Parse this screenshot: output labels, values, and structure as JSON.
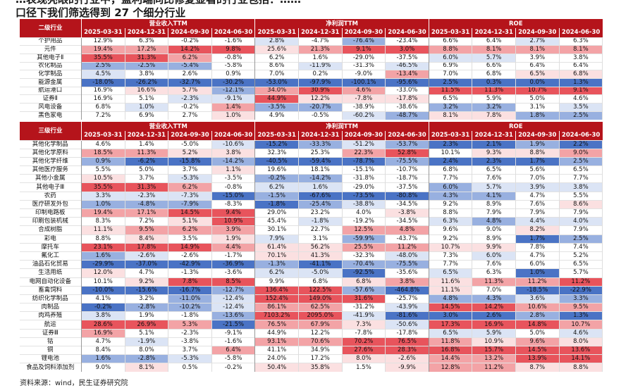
{
  "title": {
    "line1": "…表现亮眼的行业中，盈利端同比修复显著的行业包括：……",
    "line2": "口径下我们筛选得到 27 个细分行业"
  },
  "colors": {
    "header": "#b5141b",
    "red_strong": "#e8545c",
    "red_mid": "#f3a3a6",
    "red_light": "#fbe0e1",
    "blue_strong": "#4a73c5",
    "blue_mid": "#98b0e0",
    "blue_light": "#dbe4f5"
  },
  "periods": [
    "2025-03-31",
    "2024-12-31",
    "2024-09-30",
    "2024-06-30"
  ],
  "metrics": [
    "营业收入TTM",
    "净利润TTM",
    "ROE"
  ],
  "table1": {
    "industry_label": "二级行业",
    "rows": [
      {
        "name": "个护用品",
        "v": [
          "12.9%",
          "6.3%",
          "-0.2%",
          "-1.6%",
          "2.8%",
          "-4.7%",
          "-76.4%",
          "-23.4%",
          "6.6%",
          "6.4%",
          "2.7%",
          "6.3%"
        ]
      },
      {
        "name": "元件",
        "v": [
          "19.4%",
          "17.2%",
          "14.2%",
          "9.8%",
          "25.6%",
          "21.3%",
          "9.1%",
          "3.0%",
          "8.8%",
          "8.1%",
          "8.1%",
          "8.1%"
        ]
      },
      {
        "name": "其他电子Ⅱ",
        "v": [
          "35.5%",
          "31.3%",
          "6.2%",
          "-0.8%",
          "6.2%",
          "1.6%",
          "-29.0%",
          "-37.5%",
          "6.0%",
          "5.7%",
          "3.9%",
          "3.8%"
        ]
      },
      {
        "name": "农化制品",
        "v": [
          "2.5%",
          "-2.5%",
          "-5.4%",
          "-5.8%",
          "8.6%",
          "-11.9%",
          "-31.3%",
          "-46.5%",
          "6.9%",
          "6.6%",
          "6.4%",
          "6.4%"
        ]
      },
      {
        "name": "化学制品",
        "v": [
          "4.5%",
          "3.8%",
          "2.6%",
          "0.9%",
          "7.0%",
          "0.2%",
          "-9.0%",
          "-13.4%",
          "7.0%",
          "6.8%",
          "6.5%",
          "6.8%"
        ]
      },
      {
        "name": "能源金属",
        "v": [
          "-18.0%",
          "-26.2%",
          "-32.7%",
          "-30.2%",
          "-53.0%",
          "-97.9%",
          "-100.1%",
          "-95.6%",
          "2.5%",
          "0.3%",
          "0.0%",
          "1.3%"
        ]
      },
      {
        "name": "航运港口",
        "v": [
          "16.9%",
          "16.6%",
          "5.7%",
          "-12.1%",
          "34.0%",
          "30.9%",
          "4.6%",
          "-33.0%",
          "11.5%",
          "11.3%",
          "10.7%",
          "9.1%"
        ]
      },
      {
        "name": "证券Ⅱ",
        "v": [
          "16.9%",
          "5.1%",
          "-2.3%",
          "-9.1%",
          "44.9%",
          "12.2%",
          "-7.8%",
          "-17.8%",
          "6.5%",
          "5.9%",
          "5.0%",
          "4.6%"
        ]
      },
      {
        "name": "风电设备",
        "v": [
          "6.8%",
          "1.0%",
          "-0.2%",
          "1.4%",
          "-3.5%",
          "-20.7%",
          "-38.9%",
          "-38.6%",
          "3.2%",
          "3.2%",
          "3.1%",
          "3.5%"
        ]
      },
      {
        "name": "黑色家电",
        "v": [
          "7.2%",
          "6.9%",
          "2.7%",
          "1.0%",
          "4.9%",
          "-0.5%",
          "-60.2%",
          "-48.7%",
          "8.1%",
          "7.8%",
          "1.8%",
          "2.5%"
        ]
      }
    ]
  },
  "table2": {
    "industry_label": "三级行业",
    "rows": [
      {
        "name": "其他化学制品",
        "v": [
          "4.6%",
          "1.4%",
          "-5.0%",
          "-10.6%",
          "-15.2%",
          "-33.3%",
          "-51.2%",
          "-53.7%",
          "2.3%",
          "2.1%",
          "1.9%",
          "2.2%"
        ]
      },
      {
        "name": "其他化学原料",
        "v": [
          "18.5%",
          "11.3%",
          "5.2%",
          "3.8%",
          "32.3%",
          "25.3%",
          "22.3%",
          "52.8%",
          "10.1%",
          "9.3%",
          "8.8%",
          "9.0%"
        ]
      },
      {
        "name": "其他化学纤维",
        "v": [
          "0.9%",
          "-6.2%",
          "-15.8%",
          "-14.2%",
          "-40.5%",
          "-59.4%",
          "-78.7%",
          "-75.5%",
          "2.4%",
          "2.3%",
          "1.7%",
          "2.5%"
        ]
      },
      {
        "name": "其他医疗服务",
        "v": [
          "5.5%",
          "5.0%",
          "3.7%",
          "1.1%",
          "19.6%",
          "18.1%",
          "-15.1%",
          "-10.7%",
          "6.8%",
          "6.5%",
          "5.6%",
          "6.5%"
        ]
      },
      {
        "name": "其他小金属",
        "v": [
          "10.5%",
          "3.7%",
          "-5.3%",
          "-3.5%",
          "-0.2%",
          "-14.2%",
          "-31.8%",
          "-18.7%",
          "7.7%",
          "7.6%",
          "7.0%",
          "7.7%"
        ]
      },
      {
        "name": "其他电子Ⅲ",
        "v": [
          "35.5%",
          "31.3%",
          "6.2%",
          "-0.8%",
          "6.2%",
          "1.6%",
          "-29.0%",
          "-37.5%",
          "6.0%",
          "5.7%",
          "3.9%",
          "3.8%"
        ]
      },
      {
        "name": "农药",
        "v": [
          "3.3%",
          "-2.3%",
          "-7.3%",
          "-15.0%",
          "-1.5%",
          "-67.6%",
          "-73.5%",
          "-80.8%",
          "4.3%",
          "4.1%",
          "4.7%",
          "5.5%"
        ]
      },
      {
        "name": "医疗研发外包",
        "v": [
          "1.0%",
          "-4.8%",
          "-7.9%",
          "-8.3%",
          "-1.8%",
          "-25.4%",
          "-38.8%",
          "-34.5%",
          "9.2%",
          "8.9%",
          "7.6%",
          "8.6%"
        ]
      },
      {
        "name": "印制电路板",
        "v": [
          "19.4%",
          "17.1%",
          "14.5%",
          "9.4%",
          "29.0%",
          "23.2%",
          "4.0%",
          "-3.8%",
          "8.8%",
          "7.9%",
          "7.9%",
          "7.9%"
        ]
      },
      {
        "name": "印刷包装机械",
        "v": [
          "8.3%",
          "7.2%",
          "5.1%",
          "10.9%",
          "45.4%",
          "-1.8%",
          "-19.2%",
          "-34.5%",
          "6.3%",
          "4.8%",
          "4.4%",
          "4.0%"
        ]
      },
      {
        "name": "合成树脂",
        "v": [
          "11.1%",
          "9.5%",
          "6.2%",
          "3.9%",
          "30.1%",
          "22.7%",
          "12.5%",
          "4.8%",
          "9.6%",
          "9.0%",
          "8.2%",
          "7.9%"
        ]
      },
      {
        "name": "彩电",
        "v": [
          "8.8%",
          "8.4%",
          "3.5%",
          "1.9%",
          "7.9%",
          "3.1%",
          "-59.9%",
          "-43.7%",
          "9.2%",
          "8.9%",
          "1.7%",
          "2.5%"
        ]
      },
      {
        "name": "摩托车",
        "v": [
          "23.1%",
          "17.8%",
          "14.9%",
          "4.4%",
          "61.4%",
          "56.2%",
          "25.5%",
          "11.2%",
          "10.7%",
          "9.9%",
          "7.8%",
          "7.4%"
        ]
      },
      {
        "name": "氟化工",
        "v": [
          "1.6%",
          "-2.6%",
          "-2.6%",
          "-1.7%",
          "70.1%",
          "41.3%",
          "-32.3%",
          "-48.0%",
          "7.3%",
          "6.0%",
          "4.7%",
          "5.2%"
        ]
      },
      {
        "name": "油品石化贸易",
        "v": [
          "-29.9%",
          "-37.0%",
          "-42.9%",
          "-36.9%",
          "-1.3%",
          "-41.1%",
          "-70.4%",
          "-75.5%",
          "7.7%",
          "7.6%",
          "6.0%",
          "6.5%"
        ]
      },
      {
        "name": "生活用纸",
        "v": [
          "12.0%",
          "4.7%",
          "-1.3%",
          "-3.6%",
          "6.2%",
          "-5.0%",
          "-92.5%",
          "-35.6%",
          "6.5%",
          "6.3%",
          "1.0%",
          "5.7%"
        ]
      },
      {
        "name": "电网自动化设备",
        "v": [
          "10.1%",
          "9.2%",
          "7.8%",
          "8.5%",
          "9.9%",
          "6.8%",
          "6.8%",
          "3.8%",
          "11.6%",
          "11.3%",
          "11.2%",
          "11.2%"
        ]
      },
      {
        "name": "畜禽饲料",
        "v": [
          "-10.0%",
          "-15.6%",
          "-16.7%",
          "-12.7%",
          "136.4%",
          "122.5%",
          "-57.6%",
          "-464.8%",
          "11.1%",
          "7.0%",
          "-18.5%",
          "-22.9%"
        ]
      },
      {
        "name": "纺织化学制品",
        "v": [
          "4.1%",
          "3.2%",
          "-11.0%",
          "-12.4%",
          "152.4%",
          "149.0%",
          "31.6%",
          "-25.7%",
          "4.8%",
          "4.3%",
          "3.6%",
          "3.3%"
        ]
      },
      {
        "name": "肉制品",
        "v": [
          "-0.2%",
          "-2.8%",
          "-10.2%",
          "-12.4%",
          "86.1%",
          "62.5%",
          "-31.2%",
          "-43.9%",
          "14.5%",
          "14.2%",
          "10.6%",
          "9.5%"
        ]
      },
      {
        "name": "肉鸡养殖",
        "v": [
          "3.8%",
          "1.9%",
          "-1.8%",
          "-13.6%",
          "7103.2%",
          "2095.0%",
          "-41.9%",
          "-81.6%",
          "3.0%",
          "2.6%",
          "2.8%",
          "1.3%"
        ]
      },
      {
        "name": "航运",
        "v": [
          "28.6%",
          "26.9%",
          "5.3%",
          "-21.5%",
          "76.5%",
          "67.9%",
          "7.3%",
          "-50.6%",
          "17.3%",
          "16.9%",
          "14.8%",
          "10.7%"
        ]
      },
      {
        "name": "证券Ⅲ",
        "v": [
          "16.9%",
          "5.1%",
          "-2.3%",
          "-9.1%",
          "44.9%",
          "12.2%",
          "-7.8%",
          "-17.8%",
          "6.5%",
          "5.9%",
          "5.0%",
          "4.6%"
        ]
      },
      {
        "name": "钴",
        "v": [
          "4.7%",
          "-1.9%",
          "-3.8%",
          "-1.6%",
          "93.1%",
          "70.6%",
          "70.2%",
          "76.5%",
          "11.8%",
          "10.9%",
          "9.6%",
          "8.0%"
        ]
      },
      {
        "name": "铜",
        "v": [
          "8.4%",
          "8.0%",
          "3.7%",
          "6.4%",
          "41.1%",
          "34.9%",
          "27.6%",
          "28.3%",
          "16.8%",
          "15.7%",
          "14.5%",
          "13.6%"
        ]
      },
      {
        "name": "锂电池",
        "v": [
          "1.6%",
          "-2.8%",
          "-5.3%",
          "-5.8%",
          "24.0%",
          "17.2%",
          "8.0%",
          "-2.6%",
          "14.4%",
          "13.2%",
          "13.9%",
          "14.1%"
        ]
      },
      {
        "name": "食品及饲料添加剂",
        "v": [
          "9.0%",
          "8.1%",
          "0.5%",
          "-0.2%",
          "50.4%",
          "35.8%",
          "1.5%",
          "-9.9%",
          "12.8%",
          "11.2%",
          "8.7%",
          "8.8%"
        ]
      }
    ]
  },
  "source": "资料来源：wind，民生证券研究院"
}
